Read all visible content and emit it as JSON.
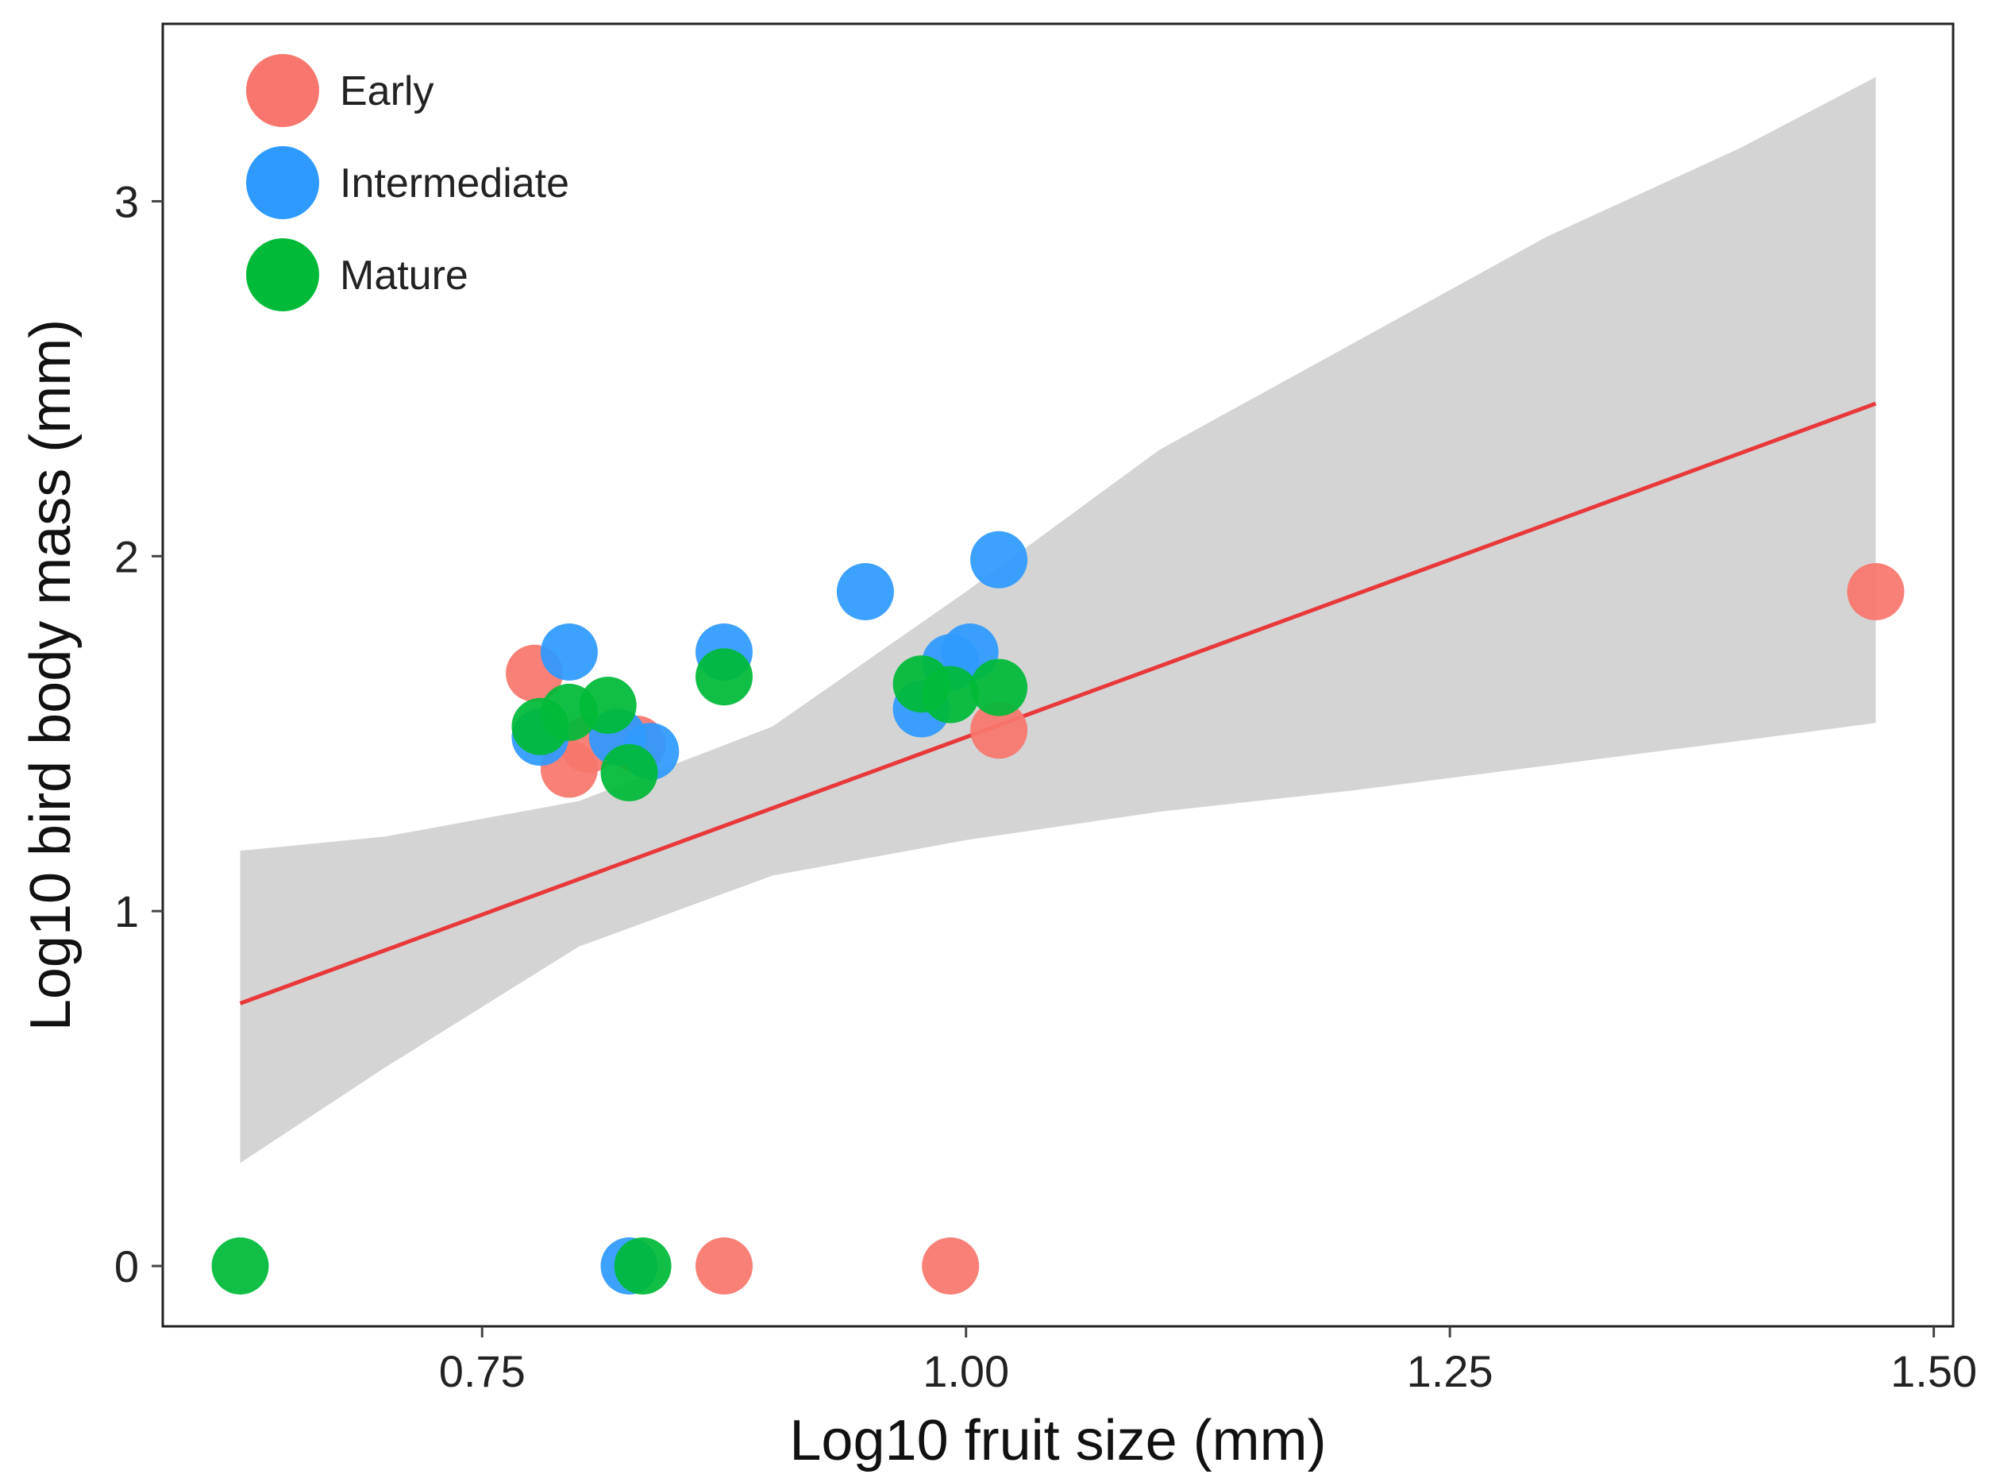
{
  "chart_data": {
    "type": "scatter",
    "title": "",
    "xlabel": "Log10 fruit size (mm)",
    "ylabel": "Log10 bird body mass (mm)",
    "xlim": [
      0.585,
      1.51
    ],
    "ylim": [
      -0.17,
      3.5
    ],
    "x_ticks": [
      0.75,
      1.0,
      1.25,
      1.5
    ],
    "x_tick_labels": [
      "0.75",
      "1.00",
      "1.25",
      "1.50"
    ],
    "y_ticks": [
      0,
      1,
      2,
      3
    ],
    "y_tick_labels": [
      "0",
      "1",
      "2",
      "3"
    ],
    "grid": false,
    "legend_position": "top-left",
    "colors": {
      "early": "#F8766D",
      "intermediate": "#2E9AFF",
      "mature": "#00BA38",
      "fit_line": "#E8383A",
      "ci_band": "#D4D4D4"
    },
    "series": [
      {
        "name": "Early",
        "color": "#F8766D",
        "points": [
          [
            0.777,
            1.67
          ],
          [
            0.795,
            1.4
          ],
          [
            0.805,
            1.47
          ],
          [
            0.83,
            1.47
          ],
          [
            0.875,
            0.0
          ],
          [
            0.992,
            0.0
          ],
          [
            1.017,
            1.51
          ],
          [
            1.47,
            1.9
          ]
        ]
      },
      {
        "name": "Intermediate",
        "color": "#2E9AFF",
        "points": [
          [
            0.795,
            1.73
          ],
          [
            0.78,
            1.49
          ],
          [
            0.82,
            1.49
          ],
          [
            0.837,
            1.45
          ],
          [
            0.826,
            0.0
          ],
          [
            0.875,
            1.73
          ],
          [
            0.948,
            1.9
          ],
          [
            0.977,
            1.57
          ],
          [
            0.992,
            1.7
          ],
          [
            1.002,
            1.73
          ],
          [
            1.017,
            1.99
          ]
        ]
      },
      {
        "name": "Mature",
        "color": "#00BA38",
        "points": [
          [
            0.625,
            0.0
          ],
          [
            0.78,
            1.52
          ],
          [
            0.795,
            1.56
          ],
          [
            0.815,
            1.58
          ],
          [
            0.826,
            1.39
          ],
          [
            0.833,
            0.0
          ],
          [
            0.875,
            1.66
          ],
          [
            0.977,
            1.64
          ],
          [
            0.992,
            1.61
          ],
          [
            1.017,
            1.63
          ]
        ]
      }
    ],
    "fit": {
      "x": [
        0.625,
        1.47
      ],
      "y": [
        0.74,
        2.43
      ]
    },
    "confidence_band": {
      "x": [
        0.625,
        0.7,
        0.8,
        0.9,
        1.0,
        1.1,
        1.2,
        1.3,
        1.4,
        1.47
      ],
      "lower": [
        0.29,
        0.56,
        0.9,
        1.1,
        1.2,
        1.28,
        1.34,
        1.41,
        1.48,
        1.53
      ],
      "upper": [
        1.17,
        1.21,
        1.31,
        1.52,
        1.9,
        2.3,
        2.6,
        2.9,
        3.15,
        3.35
      ]
    }
  }
}
